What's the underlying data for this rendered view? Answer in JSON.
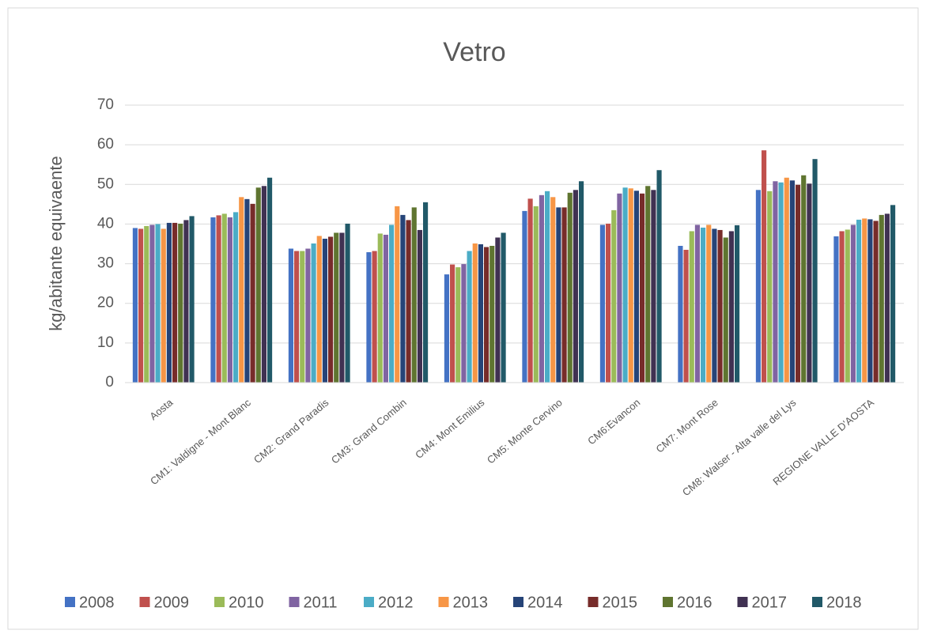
{
  "chart_data": {
    "type": "bar",
    "title": "Vetro",
    "y_label": "kg/abitante equivaente",
    "categories": [
      "Aosta",
      "CM1: Valdigne - Mont Blanc",
      "CM2: Grand Paradis",
      "CM3: Grand Combin",
      "CM4: Mont Emilius",
      "CM5: Monte Cervino",
      "CM6:Evancon",
      "CM7: Mont Rose",
      "CM8: Walser - Alta valle del Lys",
      "REGIONE VALLE D'AOSTA"
    ],
    "series": [
      {
        "name": "2008",
        "color": "#4472c4",
        "values": [
          39,
          41.7,
          33.8,
          32.9,
          27.3,
          43.3,
          39.8,
          34.5,
          48.6,
          36.9
        ]
      },
      {
        "name": "2009",
        "color": "#c0504d",
        "values": [
          38.8,
          42.2,
          33.2,
          33.2,
          29.8,
          46.4,
          40.1,
          33.5,
          58.6,
          38.2
        ]
      },
      {
        "name": "2010",
        "color": "#9bbb59",
        "values": [
          39.5,
          42.6,
          33.2,
          37.6,
          29.1,
          44.5,
          43.5,
          38.2,
          48.3,
          38.6
        ]
      },
      {
        "name": "2011",
        "color": "#8064a2",
        "values": [
          39.8,
          41.7,
          33.8,
          37.3,
          29.9,
          47.3,
          47.7,
          39.8,
          50.8,
          39.8
        ]
      },
      {
        "name": "2012",
        "color": "#4bacc6",
        "values": [
          40,
          43,
          35.1,
          39.8,
          33.2,
          48.3,
          49.2,
          39.1,
          50.5,
          41.1
        ]
      },
      {
        "name": "2013",
        "color": "#f79646",
        "values": [
          38.8,
          46.8,
          37,
          44.5,
          35.1,
          46.8,
          49,
          39.8,
          51.7,
          41.4
        ]
      },
      {
        "name": "2014",
        "color": "#264478",
        "values": [
          40.3,
          46.3,
          36.3,
          42.3,
          34.9,
          44.2,
          48.4,
          38.8,
          51,
          41.2
        ]
      },
      {
        "name": "2015",
        "color": "#772c2a",
        "values": [
          40.3,
          45.1,
          36.8,
          41,
          34.2,
          44.2,
          47.7,
          38.5,
          49.9,
          40.8
        ]
      },
      {
        "name": "2016",
        "color": "#5f7530",
        "values": [
          40.1,
          49.2,
          37.8,
          44.2,
          34.5,
          47.9,
          49.6,
          36.6,
          52.3,
          42.3
        ]
      },
      {
        "name": "2017",
        "color": "#403152",
        "values": [
          41,
          49.6,
          37.8,
          38.5,
          36.6,
          48.6,
          48.6,
          38.2,
          50.2,
          42.6
        ]
      },
      {
        "name": "2018",
        "color": "#215968",
        "values": [
          42,
          51.7,
          40.1,
          45.5,
          37.8,
          50.8,
          53.6,
          39.7,
          56.4,
          44.8
        ]
      }
    ],
    "ylim": [
      0,
      70
    ],
    "yticks": [
      0,
      10,
      20,
      30,
      40,
      50,
      60,
      70
    ],
    "grid": true,
    "legend": "bottom"
  }
}
